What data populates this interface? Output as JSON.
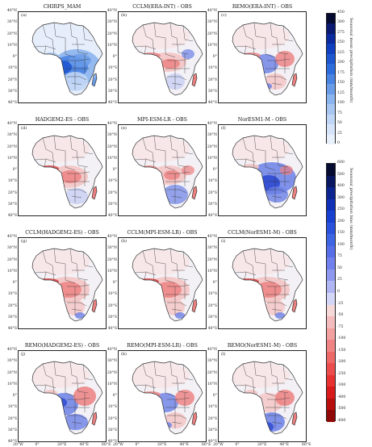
{
  "panels": [
    {
      "label": "(a)",
      "title": "CHIRPS_MAM",
      "kind": "mean"
    },
    {
      "label": "(b)",
      "title": "CCLM(ERA-INT) - OBS",
      "kind": "bias",
      "pattern": "wet_east"
    },
    {
      "label": "(c)",
      "title": "REMO(ERA-INT) - OBS",
      "kind": "bias",
      "pattern": "mixed"
    },
    {
      "label": "(d)",
      "title": "HADGEM2-ES - OBS",
      "kind": "bias",
      "pattern": "dry_center"
    },
    {
      "label": "(e)",
      "title": "MPI-ESM-LR - OBS",
      "kind": "bias",
      "pattern": "dry_center_wet_south"
    },
    {
      "label": "(f)",
      "title": "NorESM1-M - OBS",
      "kind": "bias",
      "pattern": "wet"
    },
    {
      "label": "(g)",
      "title": "CCLM(HADGEM2-ES) - OBS",
      "kind": "bias",
      "pattern": "dry"
    },
    {
      "label": "(h)",
      "title": "CCLM(MPI-ESM-LR) - OBS",
      "kind": "bias",
      "pattern": "dry"
    },
    {
      "label": "(i)",
      "title": "CCLM(NorESM1-M) - OBS",
      "kind": "bias",
      "pattern": "dry"
    },
    {
      "label": "(j)",
      "title": "REMO(HADGEM2-ES) - OBS",
      "kind": "bias",
      "pattern": "wet_west"
    },
    {
      "label": "(k)",
      "title": "REMO(MPI-ESM-LR) - OBS",
      "kind": "bias",
      "pattern": "mixed"
    },
    {
      "label": "(l)",
      "title": "REMO(NorESM1-M) - OBS",
      "kind": "bias",
      "pattern": "wet_south"
    }
  ],
  "lat_ticks": [
    "40°N",
    "30°N",
    "20°N",
    "10°N",
    "0°",
    "10°S",
    "20°S",
    "30°S",
    "40°S"
  ],
  "lon_ticks": [
    "20°W",
    "0°",
    "20°E",
    "40°E",
    "60°E"
  ],
  "colorbar_mean": {
    "label": "Seasonal mean precipitation (mm/month)",
    "ticks": [
      "450",
      "300",
      "275",
      "250",
      "225",
      "200",
      "175",
      "150",
      "125",
      "100",
      "75",
      "50",
      "25",
      "0"
    ],
    "colors": [
      "#050a30",
      "#0a1a70",
      "#0b2aa0",
      "#1040c0",
      "#1e56d0",
      "#2d6cdc",
      "#4a84e2",
      "#6a9ce8",
      "#8cb4ee",
      "#a8c6f2",
      "#c0d6f6",
      "#d6e4f9",
      "#e8f0fc"
    ]
  },
  "colorbar_bias": {
    "label": "Seasonal precipitation bias (mm/month)",
    "ticks": [
      "600",
      "500",
      "400",
      "300",
      "250",
      "200",
      "150",
      "100",
      "75",
      "50",
      "25",
      "0",
      "-25",
      "-50",
      "-75",
      "-100",
      "-150",
      "-200",
      "-250",
      "-300",
      "-400",
      "-500",
      "-600"
    ],
    "colors": [
      "#040a30",
      "#081760",
      "#0c2490",
      "#1030b8",
      "#1840d0",
      "#2a52dc",
      "#3e66e4",
      "#566ee8",
      "#7080ec",
      "#8e98f0",
      "#b0b6f4",
      "#d4d6f8",
      "#f6d8d8",
      "#f4bcbc",
      "#f2a0a0",
      "#f08484",
      "#ee6868",
      "#ec4c4c",
      "#e83232",
      "#d81a1a",
      "#b80e0e",
      "#900808"
    ]
  },
  "colors": {
    "land_neutral": "#f3f1f6",
    "border": "#333333",
    "frame": "#222222"
  }
}
